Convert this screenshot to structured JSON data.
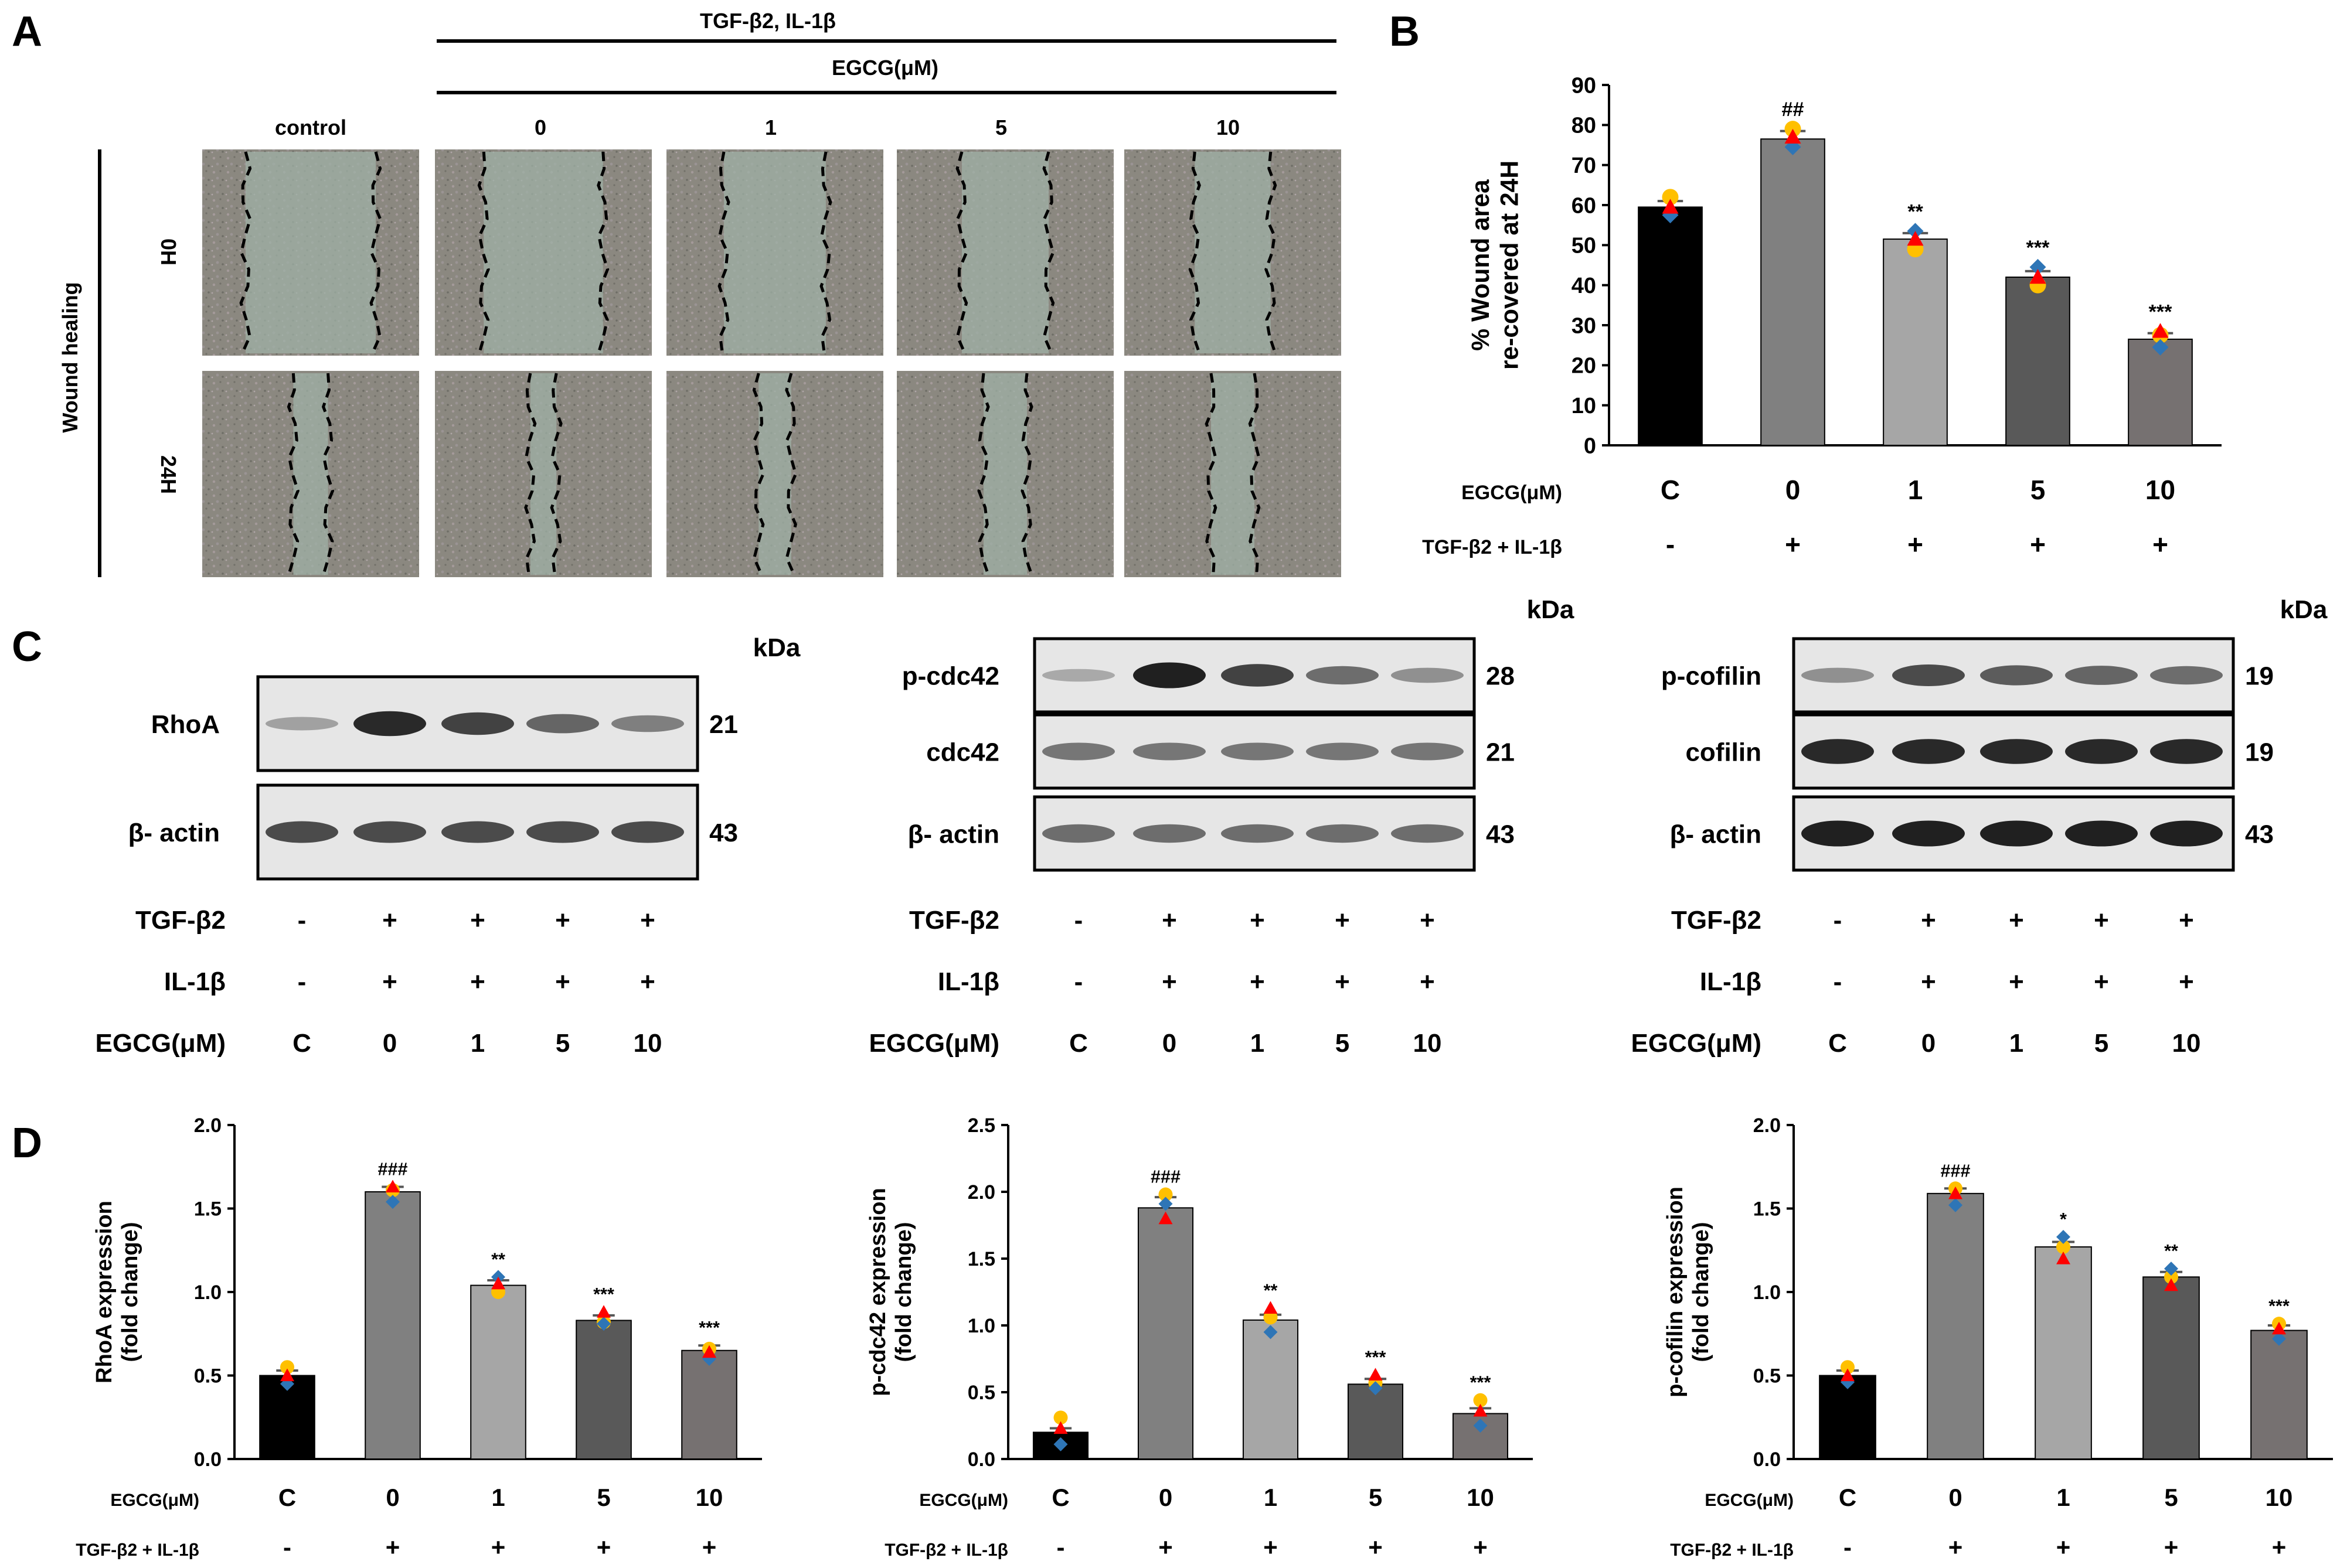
{
  "panels": {
    "A": "A",
    "B": "B",
    "C": "C",
    "D": "D"
  },
  "colors": {
    "bars": [
      "#000000",
      "#808080",
      "#a6a6a6",
      "#595959",
      "#767171"
    ],
    "dots": {
      "diamond": "#2e75b6",
      "triangle": "#ff0000",
      "circle": "#ffc000"
    }
  },
  "panelA": {
    "treatment": "TGF-β2, IL-1β",
    "egcg": "EGCG(μM)",
    "columns": [
      "control",
      "0",
      "1",
      "5",
      "10"
    ],
    "rows": [
      "0H",
      "24H"
    ],
    "side_label": "Wound healing"
  },
  "panelC": {
    "kda": "kDa",
    "blots": [
      {
        "rows": [
          {
            "name": "RhoA",
            "kda": "21",
            "intensity": [
              0.25,
              0.95,
              0.8,
              0.6,
              0.45
            ]
          },
          {
            "name": "β- actin",
            "kda": "43",
            "intensity": [
              0.75,
              0.75,
              0.75,
              0.75,
              0.75
            ]
          }
        ]
      },
      {
        "rows": [
          {
            "name": "p-cdc42",
            "kda": "28",
            "intensity": [
              0.2,
              1.0,
              0.8,
              0.55,
              0.35
            ]
          },
          {
            "name": "cdc42",
            "kda": "21",
            "intensity": [
              0.5,
              0.5,
              0.5,
              0.5,
              0.5
            ]
          },
          {
            "name": "β- actin",
            "kda": "43",
            "intensity": [
              0.55,
              0.55,
              0.55,
              0.55,
              0.55
            ]
          }
        ]
      },
      {
        "rows": [
          {
            "name": "p-cofilin",
            "kda": "19",
            "intensity": [
              0.35,
              0.75,
              0.65,
              0.6,
              0.55
            ]
          },
          {
            "name": "cofilin",
            "kda": "19",
            "intensity": [
              0.95,
              0.95,
              0.95,
              0.95,
              0.95
            ]
          },
          {
            "name": "β- actin",
            "kda": "43",
            "intensity": [
              1.0,
              1.0,
              1.0,
              1.0,
              1.0
            ]
          }
        ]
      }
    ],
    "treat_labels": [
      "TGF-β2",
      "IL-1β",
      "EGCG(μM)"
    ],
    "treat_values": [
      [
        "-",
        "+",
        "+",
        "+",
        "+"
      ],
      [
        "-",
        "+",
        "+",
        "+",
        "+"
      ],
      [
        "C",
        "0",
        "1",
        "5",
        "10"
      ]
    ]
  },
  "chart_data": [
    {
      "panel": "B",
      "type": "bar",
      "ylabel": [
        "% Wound area",
        "re-covered at 24H"
      ],
      "ylim": [
        0,
        90
      ],
      "yticks": [
        0,
        10,
        20,
        30,
        40,
        50,
        60,
        70,
        80,
        90
      ],
      "yticklabels": [
        "0",
        "10",
        "20",
        "30",
        "40",
        "50",
        "60",
        "70",
        "80",
        "90"
      ],
      "categories": [
        "C",
        "0",
        "1",
        "5",
        "10"
      ],
      "values": [
        59.5,
        76.5,
        51.5,
        42,
        26.5
      ],
      "errors": [
        1.5,
        2,
        1.5,
        1.5,
        1.5
      ],
      "points": [
        [
          62,
          57.5,
          59.5
        ],
        [
          79,
          74.5,
          77
        ],
        [
          49,
          53.5,
          51.5
        ],
        [
          40,
          44.5,
          42
        ],
        [
          27.5,
          24.5,
          28.5
        ]
      ],
      "annotations": [
        "",
        "##",
        "**",
        "***",
        "***"
      ],
      "row_labels": [
        "EGCG(μM)",
        "TGF-β2 + IL-1β"
      ],
      "treatment": [
        "-",
        "+",
        "+",
        "+",
        "+"
      ]
    },
    {
      "panel": "D1",
      "type": "bar",
      "ylabel": [
        "RhoA expression",
        "(fold change)"
      ],
      "ylim": [
        0,
        2.0
      ],
      "yticks": [
        0,
        0.5,
        1.0,
        1.5,
        2.0
      ],
      "yticklabels": [
        "0.0",
        "0.5",
        "1.0",
        "1.5",
        "2.0"
      ],
      "categories": [
        "C",
        "0",
        "1",
        "5",
        "10"
      ],
      "values": [
        0.5,
        1.6,
        1.04,
        0.83,
        0.65
      ],
      "errors": [
        0.03,
        0.03,
        0.03,
        0.03,
        0.03
      ],
      "points": [
        [
          0.55,
          0.45,
          0.5
        ],
        [
          1.61,
          1.54,
          1.63
        ],
        [
          1.0,
          1.09,
          1.05
        ],
        [
          0.82,
          0.81,
          0.88
        ],
        [
          0.66,
          0.6,
          0.64
        ]
      ],
      "annotations": [
        "",
        "###",
        "**",
        "***",
        "***"
      ],
      "row_labels": [
        "EGCG(μM)",
        "TGF-β2 + IL-1β"
      ],
      "treatment": [
        "-",
        "+",
        "+",
        "+",
        "+"
      ]
    },
    {
      "panel": "D2",
      "type": "bar",
      "ylabel": [
        "p-cdc42 expression",
        "(fold change)"
      ],
      "ylim": [
        0,
        2.5
      ],
      "yticks": [
        0,
        0.5,
        1.0,
        1.5,
        2.0,
        2.5
      ],
      "yticklabels": [
        "0.0",
        "0.5",
        "1.0",
        "1.5",
        "2.0",
        "2.5"
      ],
      "categories": [
        "C",
        "0",
        "1",
        "5",
        "10"
      ],
      "values": [
        0.2,
        1.88,
        1.04,
        0.56,
        0.34
      ],
      "errors": [
        0.03,
        0.08,
        0.04,
        0.04,
        0.04
      ],
      "points": [
        [
          0.31,
          0.11,
          0.23
        ],
        [
          1.98,
          1.91,
          1.8
        ],
        [
          1.06,
          0.95,
          1.13
        ],
        [
          0.57,
          0.53,
          0.63
        ],
        [
          0.44,
          0.25,
          0.36
        ]
      ],
      "annotations": [
        "",
        "###",
        "**",
        "***",
        "***"
      ],
      "row_labels": [
        "EGCG(μM)",
        "TGF-β2 + IL-1β"
      ],
      "treatment": [
        "-",
        "+",
        "+",
        "+",
        "+"
      ]
    },
    {
      "panel": "D3",
      "type": "bar",
      "ylabel": [
        "p-cofilin expression",
        "(fold change)"
      ],
      "ylim": [
        0,
        2.0
      ],
      "yticks": [
        0,
        0.5,
        1.0,
        1.5,
        2.0
      ],
      "yticklabels": [
        "0.0",
        "0.5",
        "1.0",
        "1.5",
        "2.0"
      ],
      "categories": [
        "C",
        "0",
        "1",
        "5",
        "10"
      ],
      "values": [
        0.5,
        1.59,
        1.27,
        1.09,
        0.77
      ],
      "errors": [
        0.03,
        0.03,
        0.03,
        0.03,
        0.03
      ],
      "points": [
        [
          0.55,
          0.46,
          0.5
        ],
        [
          1.62,
          1.52,
          1.59
        ],
        [
          1.27,
          1.33,
          1.2
        ],
        [
          1.09,
          1.14,
          1.04
        ],
        [
          0.81,
          0.72,
          0.78
        ]
      ],
      "annotations": [
        "",
        "###",
        "*",
        "**",
        "***"
      ],
      "row_labels": [
        "EGCG(μM)",
        "TGF-β2 + IL-1β"
      ],
      "treatment": [
        "-",
        "+",
        "+",
        "+",
        "+"
      ]
    }
  ]
}
